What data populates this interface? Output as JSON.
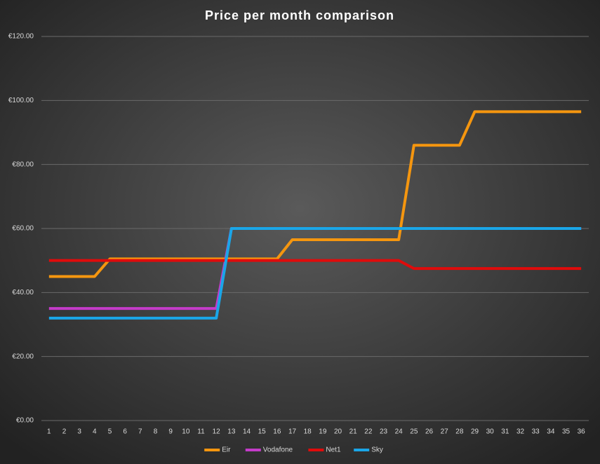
{
  "chart_data": {
    "type": "line",
    "title": "Price per month comparison",
    "categories": [
      "1",
      "2",
      "3",
      "4",
      "5",
      "6",
      "7",
      "8",
      "9",
      "10",
      "11",
      "12",
      "13",
      "14",
      "15",
      "16",
      "17",
      "18",
      "19",
      "20",
      "21",
      "22",
      "23",
      "24",
      "25",
      "26",
      "27",
      "28",
      "29",
      "30",
      "31",
      "32",
      "33",
      "34",
      "35",
      "36"
    ],
    "series": [
      {
        "name": "Eir",
        "color": "#f5960f",
        "values": [
          45,
          45,
          45,
          45,
          50.5,
          50.5,
          50.5,
          50.5,
          50.5,
          50.5,
          50.5,
          50.5,
          50.5,
          50.5,
          50.5,
          50.5,
          56.5,
          56.5,
          56.5,
          56.5,
          56.5,
          56.5,
          56.5,
          56.5,
          86,
          86,
          86,
          86,
          96.5,
          96.5,
          96.5,
          96.5,
          96.5,
          96.5,
          96.5,
          96.5
        ]
      },
      {
        "name": "Vodafone",
        "color": "#c43bc9",
        "values": [
          35,
          35,
          35,
          35,
          35,
          35,
          35,
          35,
          35,
          35,
          35,
          35,
          60,
          60,
          60,
          60,
          60,
          60,
          60,
          60,
          60,
          60,
          60,
          60,
          60,
          60,
          60,
          60,
          60,
          60,
          60,
          60,
          60,
          60,
          60,
          60
        ]
      },
      {
        "name": "Net1",
        "color": "#e00b0b",
        "values": [
          50,
          50,
          50,
          50,
          50,
          50,
          50,
          50,
          50,
          50,
          50,
          50,
          50,
          50,
          50,
          50,
          50,
          50,
          50,
          50,
          50,
          50,
          50,
          50,
          47.5,
          47.5,
          47.5,
          47.5,
          47.5,
          47.5,
          47.5,
          47.5,
          47.5,
          47.5,
          47.5,
          47.5
        ]
      },
      {
        "name": "Sky",
        "color": "#1aa6e8",
        "values": [
          32,
          32,
          32,
          32,
          32,
          32,
          32,
          32,
          32,
          32,
          32,
          32,
          60,
          60,
          60,
          60,
          60,
          60,
          60,
          60,
          60,
          60,
          60,
          60,
          60,
          60,
          60,
          60,
          60,
          60,
          60,
          60,
          60,
          60,
          60,
          60
        ]
      }
    ],
    "ylim": [
      0,
      120
    ],
    "yticks": [
      {
        "value": 0,
        "label": "€0.00"
      },
      {
        "value": 20,
        "label": "€20.00"
      },
      {
        "value": 40,
        "label": "€40.00"
      },
      {
        "value": 60,
        "label": "€60.00"
      },
      {
        "value": 80,
        "label": "€80.00"
      },
      {
        "value": 100,
        "label": "€100.00"
      },
      {
        "value": 120,
        "label": "€120.00"
      }
    ],
    "grid": true,
    "legend": "bottom"
  }
}
